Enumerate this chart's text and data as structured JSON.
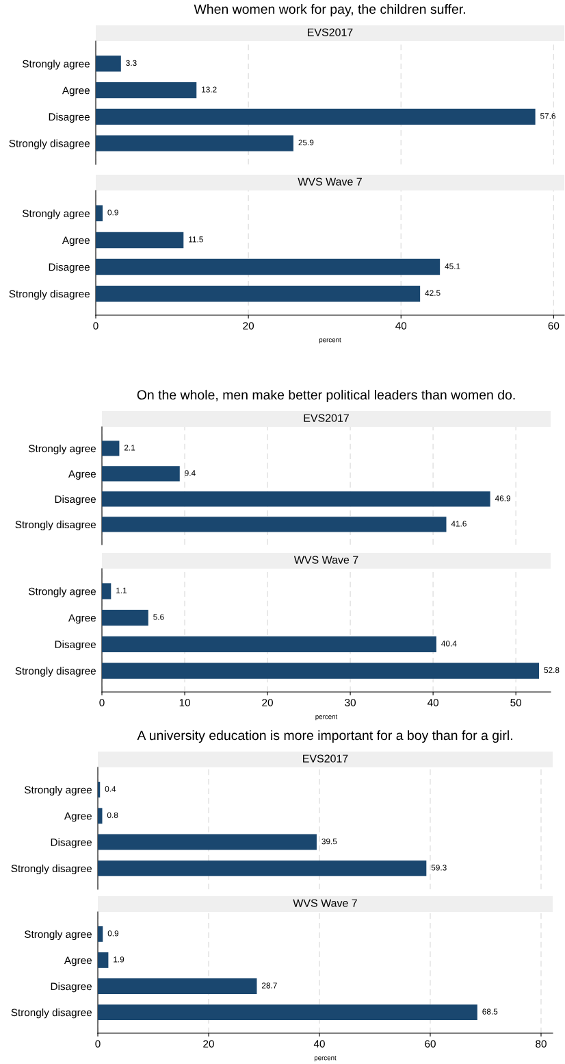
{
  "chart_data": [
    {
      "type": "bar",
      "orientation": "horizontal",
      "title": "When women work for pay, the children suffer.",
      "subtitle": "EVS2017",
      "categories": [
        "Strongly agree",
        "Agree",
        "Disagree",
        "Strongly disagree"
      ],
      "values": [
        3.3,
        13.2,
        57.6,
        25.9
      ],
      "color": "#1a476f",
      "xticks": [
        0,
        20,
        40,
        60
      ],
      "grid": "x",
      "data_labels": true,
      "tick_labels": "y"
    },
    {
      "type": "bar",
      "orientation": "horizontal",
      "subtitle": "WVS Wave 7",
      "categories": [
        "Strongly agree",
        "Agree",
        "Disagree",
        "Strongly disagree"
      ],
      "values": [
        0.9,
        11.5,
        45.1,
        42.5
      ],
      "color": "#1a476f",
      "xlim": [
        0,
        61.4
      ],
      "xticks": [
        0,
        20,
        40,
        60
      ],
      "xlabel": "percent",
      "grid": "x",
      "data_labels": true
    },
    {
      "type": "bar",
      "orientation": "horizontal",
      "title": "On the whole, men make better political leaders than women do.",
      "subtitle": "EVS2017",
      "categories": [
        "Strongly agree",
        "Agree",
        "Disagree",
        "Strongly disagree"
      ],
      "values": [
        2.1,
        9.4,
        46.9,
        41.6
      ],
      "color": "#1a476f",
      "xticks": [
        0,
        10,
        20,
        30,
        40,
        50
      ],
      "grid": "x",
      "data_labels": true,
      "tick_labels": "y"
    },
    {
      "type": "bar",
      "orientation": "horizontal",
      "subtitle": "WVS Wave 7",
      "categories": [
        "Strongly agree",
        "Agree",
        "Disagree",
        "Strongly disagree"
      ],
      "values": [
        1.1,
        5.6,
        40.4,
        52.8
      ],
      "color": "#1a476f",
      "xlim": [
        0,
        54.2
      ],
      "xticks": [
        0,
        10,
        20,
        30,
        40,
        50
      ],
      "xlabel": "percent",
      "grid": "x",
      "data_labels": true
    },
    {
      "type": "bar",
      "orientation": "horizontal",
      "title": "A university education is more important for a boy than for a girl.",
      "subtitle": "EVS2017",
      "categories": [
        "Strongly agree",
        "Agree",
        "Disagree",
        "Strongly disagree"
      ],
      "values": [
        0.4,
        0.8,
        39.5,
        59.3
      ],
      "color": "#1a476f",
      "xticks": [
        0,
        20,
        40,
        60,
        80
      ],
      "grid": "x",
      "data_labels": true,
      "tick_labels": "y"
    },
    {
      "type": "bar",
      "orientation": "horizontal",
      "subtitle": "WVS Wave 7",
      "categories": [
        "Strongly agree",
        "Agree",
        "Disagree",
        "Strongly disagree"
      ],
      "values": [
        0.9,
        1.9,
        28.7,
        68.5
      ],
      "color": "#1a476f",
      "xlim": [
        0,
        82.1
      ],
      "xticks": [
        0,
        20,
        40,
        60,
        80
      ],
      "xlabel": "percent",
      "grid": "x",
      "data_labels": true
    }
  ]
}
